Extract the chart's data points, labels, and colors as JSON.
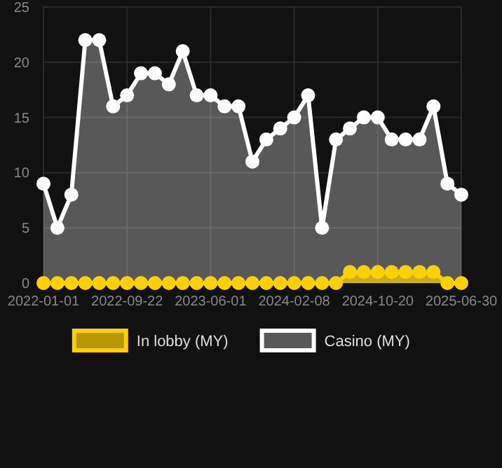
{
  "chart_data": {
    "type": "area",
    "categories": [
      "2022-01-01",
      null,
      null,
      null,
      null,
      null,
      "2022-09-22",
      null,
      null,
      null,
      null,
      null,
      "2023-06-01",
      null,
      null,
      null,
      null,
      null,
      "2024-02-08",
      null,
      null,
      null,
      null,
      null,
      "2024-10-20",
      null,
      null,
      null,
      null,
      null,
      "2025-06-30"
    ],
    "series": [
      {
        "name": "In lobby (MY)",
        "color": "#ffd000",
        "values": [
          0,
          0,
          0,
          0,
          0,
          0,
          0,
          0,
          0,
          0,
          0,
          0,
          0,
          0,
          0,
          0,
          0,
          0,
          0,
          0,
          0,
          0,
          1,
          1,
          1,
          1,
          1,
          1,
          1,
          0,
          0
        ]
      },
      {
        "name": "Casino (MY)",
        "color": "#ffffff",
        "values": [
          9,
          5,
          8,
          22,
          22,
          16,
          17,
          19,
          19,
          18,
          21,
          17,
          17,
          16,
          16,
          11,
          13,
          14,
          15,
          17,
          5,
          13,
          14,
          15,
          15,
          13,
          13,
          13,
          16,
          9,
          8
        ]
      }
    ],
    "ylim": [
      0,
      25
    ],
    "yticks": [
      0,
      5,
      10,
      15,
      20,
      25
    ],
    "grid": true,
    "legend": "bottom",
    "marker": "circle"
  }
}
